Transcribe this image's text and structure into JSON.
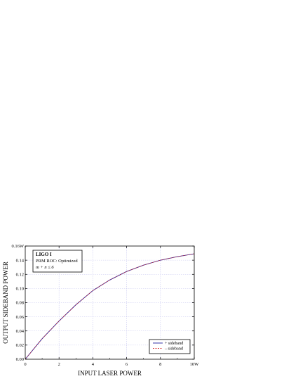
{
  "chart_data": {
    "type": "line",
    "xlabel": "INPUT LASER POWER",
    "ylabel": "OUTPUT SIDEBAND POWER",
    "xlim": [
      0,
      10
    ],
    "ylim": [
      0,
      0.16
    ],
    "x_ticks": [
      0,
      2,
      4,
      6,
      8,
      10
    ],
    "x_tick_labels": [
      "0",
      "2",
      "4",
      "6",
      "8",
      "10W"
    ],
    "y_ticks": [
      0,
      0.02,
      0.04,
      0.06,
      0.08,
      0.1,
      0.12,
      0.14,
      0.16
    ],
    "y_tick_labels": [
      "0.00",
      "0.02",
      "0.04",
      "0.06",
      "0.08",
      "0.10",
      "0.12",
      "0.14",
      "0.16W"
    ],
    "grid": true,
    "legend_position": "bottom-right",
    "annotation": {
      "title": "LIGO I",
      "line1": "PRM ROC: Optimized",
      "line2": "m + n ≤ 6"
    },
    "x": [
      0,
      1,
      2,
      3,
      4,
      5,
      6,
      7,
      8,
      9,
      10
    ],
    "series": [
      {
        "name": "+ sideband",
        "color": "#1f1f9e",
        "style": "solid",
        "values": [
          0.0,
          0.029,
          0.054,
          0.077,
          0.097,
          0.112,
          0.124,
          0.133,
          0.14,
          0.145,
          0.149
        ]
      },
      {
        "name": "– sideband",
        "color": "#d42a2a",
        "style": "dashed",
        "values": [
          0.0,
          0.029,
          0.054,
          0.077,
          0.097,
          0.112,
          0.124,
          0.133,
          0.14,
          0.145,
          0.149
        ]
      }
    ]
  }
}
